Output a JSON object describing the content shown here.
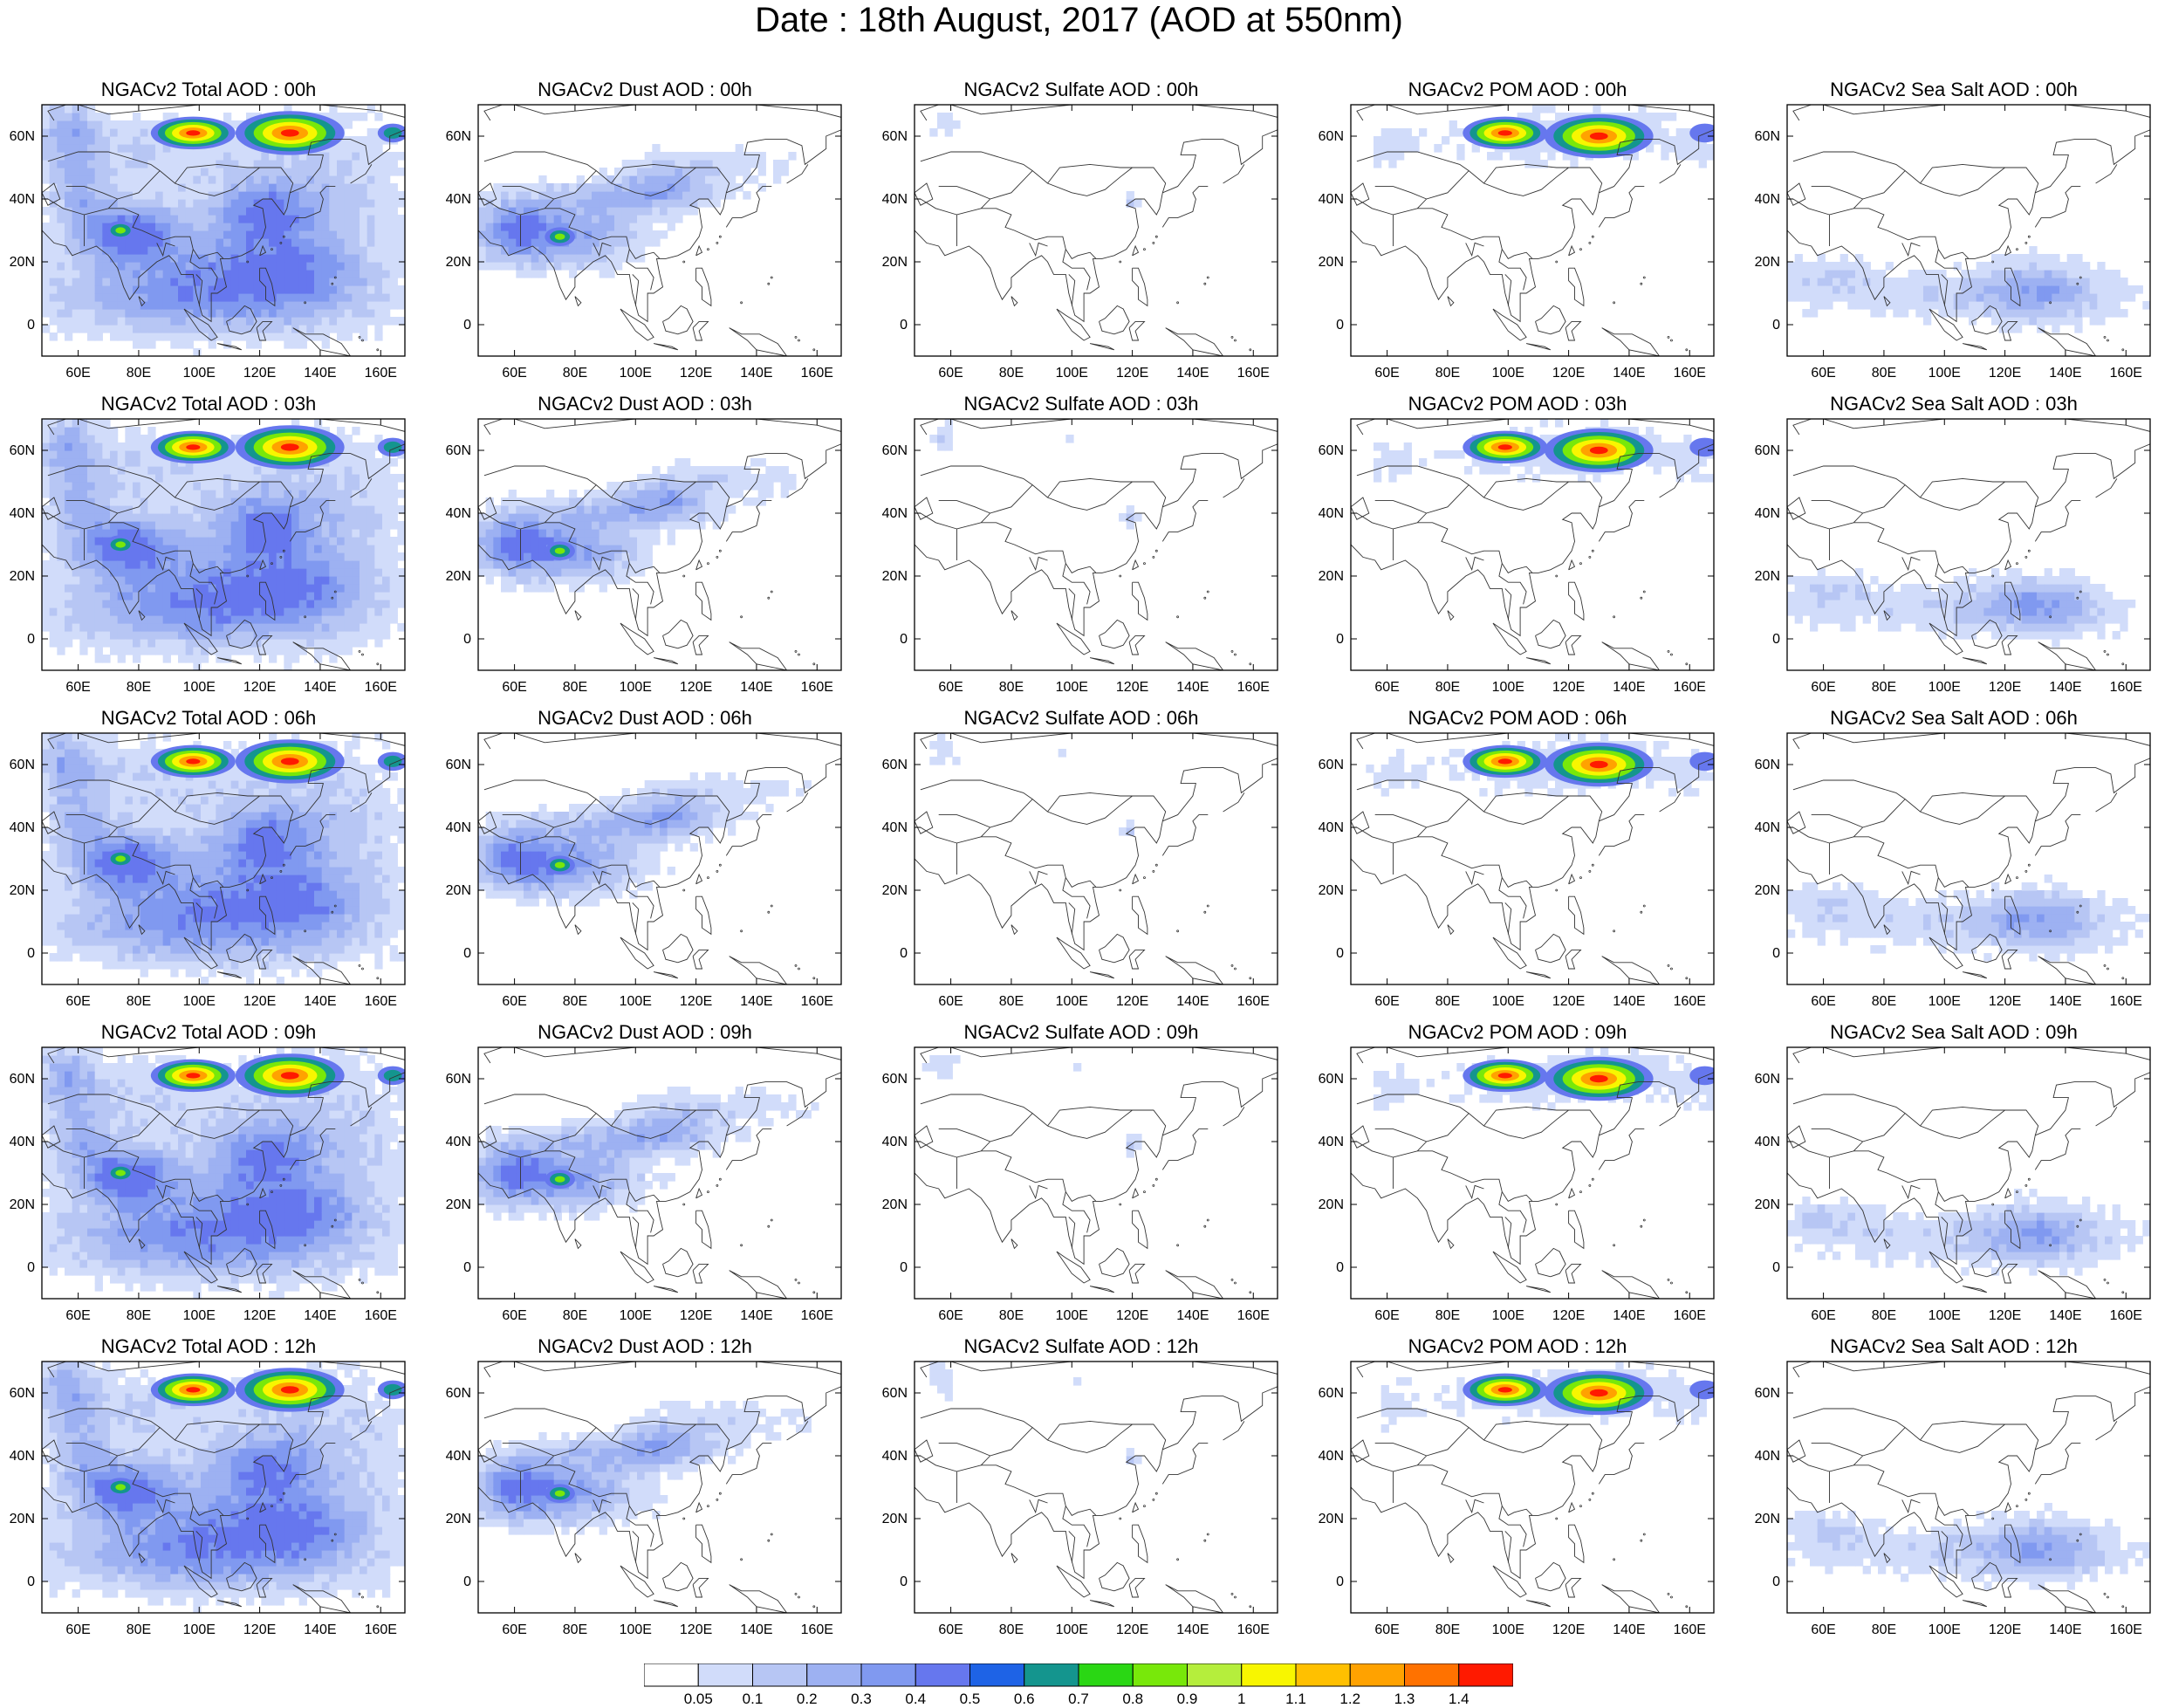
{
  "title": "Date : 18th August, 2017 (AOD at 550nm)",
  "panels": [
    {
      "title": "NGACv2 Total AOD : 00h",
      "species": "total",
      "hour": 0
    },
    {
      "title": "NGACv2 Dust AOD : 00h",
      "species": "dust",
      "hour": 0
    },
    {
      "title": "NGACv2 Sulfate AOD : 00h",
      "species": "sulfate",
      "hour": 0
    },
    {
      "title": "NGACv2 POM AOD : 00h",
      "species": "pom",
      "hour": 0
    },
    {
      "title": "NGACv2 Sea Salt AOD : 00h",
      "species": "seasalt",
      "hour": 0
    },
    {
      "title": "NGACv2 Total AOD : 03h",
      "species": "total",
      "hour": 3
    },
    {
      "title": "NGACv2 Dust AOD : 03h",
      "species": "dust",
      "hour": 3
    },
    {
      "title": "NGACv2 Sulfate AOD : 03h",
      "species": "sulfate",
      "hour": 3
    },
    {
      "title": "NGACv2 POM AOD : 03h",
      "species": "pom",
      "hour": 3
    },
    {
      "title": "NGACv2 Sea Salt AOD : 03h",
      "species": "seasalt",
      "hour": 3
    },
    {
      "title": "NGACv2 Total AOD : 06h",
      "species": "total",
      "hour": 6
    },
    {
      "title": "NGACv2 Dust AOD : 06h",
      "species": "dust",
      "hour": 6
    },
    {
      "title": "NGACv2 Sulfate AOD : 06h",
      "species": "sulfate",
      "hour": 6
    },
    {
      "title": "NGACv2 POM AOD : 06h",
      "species": "pom",
      "hour": 6
    },
    {
      "title": "NGACv2 Sea Salt AOD : 06h",
      "species": "seasalt",
      "hour": 6
    },
    {
      "title": "NGACv2 Total AOD : 09h",
      "species": "total",
      "hour": 9
    },
    {
      "title": "NGACv2 Dust AOD : 09h",
      "species": "dust",
      "hour": 9
    },
    {
      "title": "NGACv2 Sulfate AOD : 09h",
      "species": "sulfate",
      "hour": 9
    },
    {
      "title": "NGACv2 POM AOD : 09h",
      "species": "pom",
      "hour": 9
    },
    {
      "title": "NGACv2 Sea Salt  AOD : 09h",
      "species": "seasalt",
      "hour": 9
    },
    {
      "title": "NGACv2 Total AOD  : 12h",
      "species": "total",
      "hour": 12
    },
    {
      "title": "NGACv2 Dust AOD : 12h",
      "species": "dust",
      "hour": 12
    },
    {
      "title": "NGACv2 Sulfate AOD : 12h",
      "species": "sulfate",
      "hour": 12
    },
    {
      "title": "NGACv2 POM  AOD : 12h",
      "species": "pom",
      "hour": 12
    },
    {
      "title": "NGACv2 Sea Salt  AOD : 12h",
      "species": "seasalt",
      "hour": 12
    }
  ],
  "map": {
    "lon_range": [
      48,
      168
    ],
    "lat_range": [
      -10,
      70
    ],
    "lon_ticks": [
      60,
      80,
      100,
      120,
      140,
      160
    ],
    "lon_tick_labels": [
      "60E",
      "80E",
      "100E",
      "120E",
      "140E",
      "160E"
    ],
    "lat_ticks": [
      0,
      20,
      40,
      60
    ],
    "lat_tick_labels": [
      "0",
      "20N",
      "40N",
      "60N"
    ]
  },
  "colorbar": {
    "levels": [
      "0.05",
      "0.1",
      "0.2",
      "0.3",
      "0.4",
      "0.5",
      "0.6",
      "0.7",
      "0.8",
      "0.9",
      "1",
      "1.1",
      "1.2",
      "1.3",
      "1.4"
    ],
    "colors": [
      "#ffffff",
      "#d1dcfa",
      "#b7c6f4",
      "#9db1f2",
      "#8099f0",
      "#6677ee",
      "#1e63e6",
      "#14958e",
      "#2ad714",
      "#78e80a",
      "#b5ee3c",
      "#f8f600",
      "#ffc000",
      "#ffa200",
      "#ff7200",
      "#ff1a00"
    ]
  }
}
